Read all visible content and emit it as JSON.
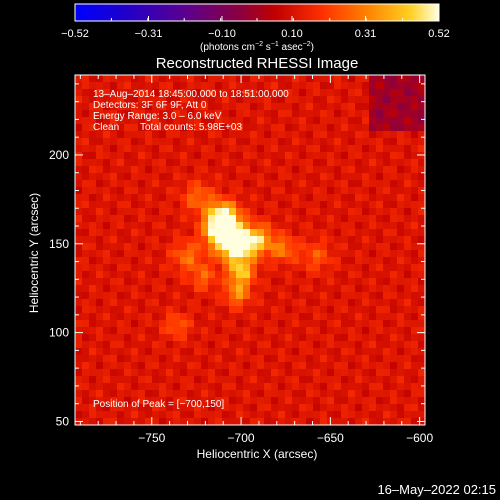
{
  "chart_data": {
    "type": "heatmap",
    "title": "Reconstructed RHESSI Image",
    "xlabel": "Heliocentric X (arcsec)",
    "ylabel": "Heliocentric Y (arcsec)",
    "xlim": [
      -793,
      -597
    ],
    "ylim": [
      48,
      245
    ],
    "x_ticks": [
      -750,
      -700,
      -650,
      -600
    ],
    "x_tick_labels": [
      "−750",
      "−700",
      "−650",
      "−600"
    ],
    "y_ticks": [
      50,
      100,
      150,
      200
    ],
    "y_tick_labels": [
      "50",
      "100",
      "150",
      "200"
    ],
    "colorbar": {
      "min": -0.52,
      "max": 0.52,
      "ticks": [
        -0.52,
        -0.31,
        -0.1,
        0.1,
        0.31,
        0.52
      ],
      "tick_labels": [
        "−0.52",
        "−0.31",
        "−0.10",
        "0.10",
        "0.31",
        "0.52"
      ],
      "unit_prefix": "(photons cm",
      "unit_sup1": "−2",
      "unit_mid": " s",
      "unit_sup2": "−1",
      "unit_mid2": " asec",
      "unit_sup3": "−2",
      "unit_suffix": ")"
    },
    "annotations": {
      "time_range": "13–Aug–2014 18:45:00.000 to 18:51:00.000",
      "detectors": "Detectors: 3F 6F 9F, Att 0",
      "energy_range": "Energy Range: 3.0 – 6.0 keV",
      "method": "Clean",
      "total_counts": "Total counts: 5.98E+03",
      "peak": "Position of Peak = [−700,150]"
    },
    "sources": [
      {
        "x": -703,
        "y": 150,
        "peak": 0.52,
        "sigma": 7
      },
      {
        "x": -710,
        "y": 165,
        "peak": 0.42,
        "sigma": 6
      },
      {
        "x": -712,
        "y": 157,
        "peak": 0.38,
        "sigma": 6
      },
      {
        "x": -700,
        "y": 134,
        "peak": 0.3,
        "sigma": 5
      },
      {
        "x": -690,
        "y": 152,
        "peak": 0.26,
        "sigma": 6
      },
      {
        "x": -702,
        "y": 122,
        "peak": 0.22,
        "sigma": 5
      },
      {
        "x": -676,
        "y": 147,
        "peak": 0.18,
        "sigma": 5
      },
      {
        "x": -730,
        "y": 143,
        "peak": 0.17,
        "sigma": 6
      },
      {
        "x": -724,
        "y": 176,
        "peak": 0.16,
        "sigma": 6
      },
      {
        "x": -736,
        "y": 104,
        "peak": 0.14,
        "sigma": 5
      },
      {
        "x": -721,
        "y": 131,
        "peak": 0.15,
        "sigma": 5
      },
      {
        "x": -658,
        "y": 143,
        "peak": 0.13,
        "sigma": 6
      }
    ],
    "background_level": 0.15
  },
  "timestamp": "16–May–2022 02:15"
}
